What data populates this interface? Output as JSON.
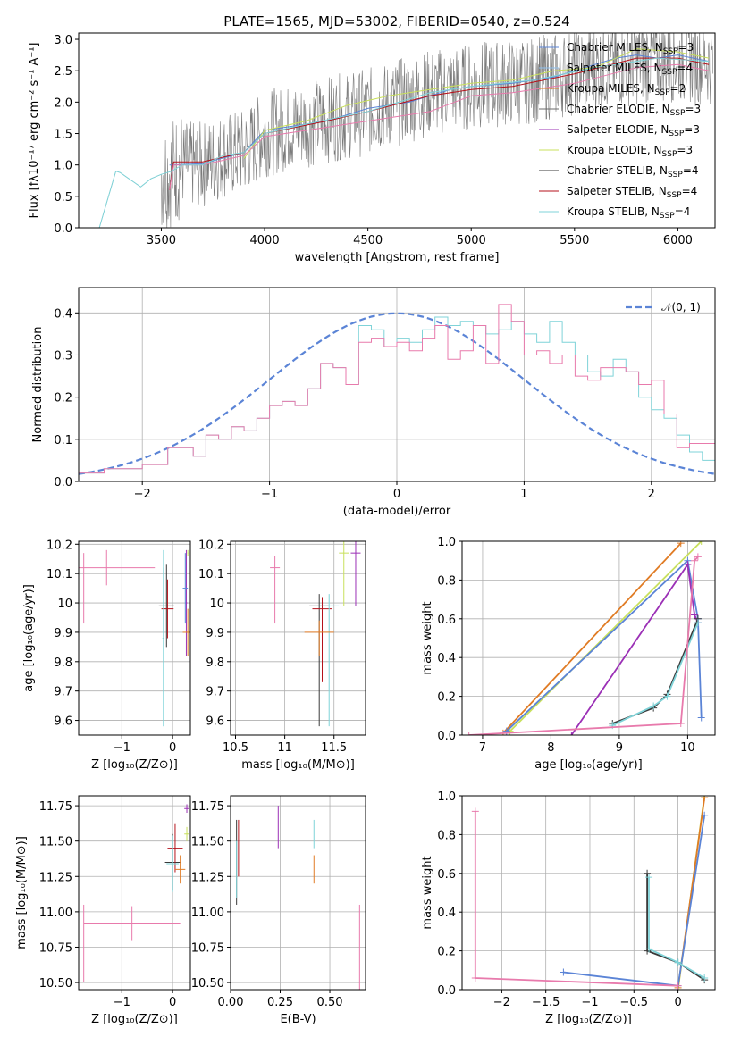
{
  "title": "PLATE=1565, MJD=53002, FIBERID=0540, z=0.524",
  "colors": {
    "Chabrier MILES": "#5b84d6",
    "Salpeter MILES": "#8ec1f0",
    "Kroupa MILES": "#e07b24",
    "Chabrier ELODIE": "#6b6b6b",
    "Salpeter ELODIE": "#9b30b6",
    "Kroupa ELODIE": "#c8e05c",
    "Chabrier STELIB": "#3a3a3a",
    "Salpeter STELIB": "#b5121b",
    "Kroupa STELIB": "#7fd3d8",
    "pink": "#e87aac",
    "data": "#7a7a7a",
    "normal": "#5b84d6"
  },
  "legend_spectrum": [
    {
      "name": "Chabrier MILES",
      "n": "3"
    },
    {
      "name": "Salpeter MILES",
      "n": "4"
    },
    {
      "name": "Kroupa MILES",
      "n": "2"
    },
    {
      "name": "Chabrier ELODIE",
      "n": "3"
    },
    {
      "name": "Salpeter ELODIE",
      "n": "3"
    },
    {
      "name": "Kroupa ELODIE",
      "n": "3"
    },
    {
      "name": "Chabrier STELIB",
      "n": "4"
    },
    {
      "name": "Salpeter STELIB",
      "n": "4"
    },
    {
      "name": "Kroupa STELIB",
      "n": "4"
    }
  ],
  "legend_hist": "𝒩(0, 1)",
  "chart_data": [
    {
      "type": "line",
      "id": "spectrum",
      "title": "PLATE=1565, MJD=53002, FIBERID=0540, z=0.524",
      "xlabel": "wavelength [Angstrom, rest frame]",
      "ylabel": "Flux [fλ10⁻¹⁷ erg cm⁻² s⁻¹ A⁻¹]",
      "xlim": [
        3100,
        6180
      ],
      "ylim": [
        0,
        3.1
      ],
      "xticks": [
        3500,
        4000,
        4500,
        5000,
        5500,
        6000
      ],
      "yticks": [
        0.0,
        0.5,
        1.0,
        1.5,
        2.0,
        2.5,
        3.0
      ],
      "series": [
        {
          "name": "Chabrier MILES",
          "x": [
            3540,
            3700,
            3900,
            4000,
            4100,
            4300,
            4500,
            4700,
            4900,
            5000,
            5200,
            5400,
            5500,
            5700,
            5800,
            5900,
            6000,
            6150
          ],
          "y": [
            1.0,
            1.02,
            1.2,
            1.55,
            1.6,
            1.7,
            1.9,
            2.0,
            2.2,
            2.25,
            2.3,
            2.4,
            2.5,
            2.7,
            2.75,
            2.7,
            2.75,
            2.65
          ]
        },
        {
          "name": "Kroupa ELODIE",
          "x": [
            3900,
            4000,
            4200,
            4400,
            4600,
            4800,
            5000,
            5200,
            5400,
            5600,
            5800,
            6000,
            6150
          ],
          "y": [
            1.1,
            1.55,
            1.7,
            1.95,
            2.1,
            2.2,
            2.3,
            2.35,
            2.5,
            2.55,
            2.85,
            2.8,
            2.7
          ]
        },
        {
          "name": "Salpeter STELIB",
          "x": [
            3540,
            3560,
            3700,
            3900,
            4000,
            4300,
            4500,
            4800,
            5000,
            5200,
            5500,
            5800,
            6000,
            6150
          ],
          "y": [
            0.6,
            1.05,
            1.05,
            1.2,
            1.5,
            1.7,
            1.85,
            2.1,
            2.2,
            2.25,
            2.45,
            2.7,
            2.7,
            2.6
          ]
        },
        {
          "name": "pink",
          "x": [
            3540,
            3560,
            3700,
            3900,
            4000,
            4300,
            4500,
            4800,
            5000,
            5200,
            5500,
            5800,
            6000,
            6150
          ],
          "y": [
            0.6,
            1.0,
            1.0,
            1.15,
            1.45,
            1.6,
            1.7,
            1.85,
            2.1,
            2.15,
            2.3,
            2.55,
            2.6,
            2.5
          ]
        },
        {
          "name": "Kroupa STELIB",
          "x": [
            3200,
            3280,
            3300,
            3400,
            3450,
            3500,
            3550,
            3600,
            3700,
            3800,
            3900,
            4000,
            4200,
            4500,
            4800,
            5000,
            5300,
            5600,
            5900,
            6150
          ],
          "y": [
            0.0,
            0.9,
            0.88,
            0.65,
            0.78,
            0.85,
            0.9,
            1.0,
            1.0,
            1.15,
            1.2,
            1.5,
            1.65,
            1.85,
            2.15,
            2.25,
            2.35,
            2.55,
            2.7,
            2.65
          ]
        }
      ]
    },
    {
      "type": "line",
      "id": "residuals",
      "xlabel": "(data-model)/error",
      "ylabel": "Normed distribution",
      "xlim": [
        -2.5,
        2.5
      ],
      "ylim": [
        0,
        0.46
      ],
      "xticks": [
        -2,
        -1,
        0,
        1,
        2
      ],
      "yticks": [
        0.0,
        0.1,
        0.2,
        0.3,
        0.4
      ],
      "series": [
        {
          "name": "𝒩(0, 1)",
          "style": "dashed",
          "mu": 0,
          "sigma": 1
        },
        {
          "name": "Kroupa STELIB",
          "step": true,
          "x0": -2.5,
          "dx": 0.1,
          "y": [
            0.02,
            0.02,
            0.03,
            0.03,
            0.03,
            0.04,
            0.04,
            0.08,
            0.08,
            0.06,
            0.11,
            0.1,
            0.13,
            0.12,
            0.15,
            0.18,
            0.19,
            0.18,
            0.22,
            0.28,
            0.27,
            0.23,
            0.37,
            0.36,
            0.32,
            0.34,
            0.33,
            0.36,
            0.39,
            0.37,
            0.38,
            0.37,
            0.35,
            0.36,
            0.38,
            0.35,
            0.33,
            0.38,
            0.33,
            0.3,
            0.26,
            0.25,
            0.29,
            0.26,
            0.2,
            0.17,
            0.15,
            0.11,
            0.07,
            0.05,
            0.03
          ]
        },
        {
          "name": "pink",
          "step": true,
          "x0": -2.5,
          "dx": 0.1,
          "y": [
            0.02,
            0.02,
            0.03,
            0.03,
            0.03,
            0.04,
            0.04,
            0.08,
            0.08,
            0.06,
            0.11,
            0.1,
            0.13,
            0.12,
            0.15,
            0.18,
            0.19,
            0.18,
            0.22,
            0.28,
            0.27,
            0.23,
            0.33,
            0.34,
            0.32,
            0.33,
            0.31,
            0.34,
            0.37,
            0.29,
            0.31,
            0.37,
            0.28,
            0.42,
            0.38,
            0.3,
            0.31,
            0.28,
            0.3,
            0.25,
            0.24,
            0.27,
            0.27,
            0.26,
            0.23,
            0.24,
            0.16,
            0.08,
            0.09,
            0.09,
            0.03
          ]
        }
      ]
    },
    {
      "type": "scatter",
      "id": "age_vs_Z",
      "xlabel": "Z [log₁₀(Z/Z⊙)]",
      "ylabel": "age  [log₁₀(age/yr)]",
      "xlim": [
        -1.85,
        0.35
      ],
      "ylim": [
        9.55,
        10.21
      ],
      "xticks": [
        -1,
        0
      ],
      "yticks": [
        9.6,
        9.7,
        9.8,
        9.9,
        10.0,
        10.1,
        10.2
      ]
    },
    {
      "type": "scatter",
      "id": "age_vs_mass",
      "xlabel": "mass [log₁₀(M/M⊙)]",
      "xlim": [
        10.45,
        11.82
      ],
      "ylim": [
        9.55,
        10.21
      ],
      "xticks": [
        10.5,
        11.0,
        11.5
      ],
      "yticks": [
        9.6,
        9.7,
        9.8,
        9.9,
        10.0,
        10.1,
        10.2
      ]
    },
    {
      "type": "line",
      "id": "weight_vs_age",
      "xlabel": "age  [log₁₀(age/yr)]",
      "ylabel": "mass weight",
      "xlim": [
        6.7,
        10.4
      ],
      "ylim": [
        0,
        1.0
      ],
      "xticks": [
        7,
        8,
        9,
        10
      ],
      "yticks": [
        0.0,
        0.2,
        0.4,
        0.6,
        0.8,
        1.0
      ],
      "series": [
        {
          "name": "Kroupa MILES",
          "x": [
            7.3,
            9.9
          ],
          "y": [
            0.01,
            0.99
          ]
        },
        {
          "name": "Kroupa ELODIE",
          "x": [
            7.4,
            10.2
          ],
          "y": [
            0.02,
            1.0
          ]
        },
        {
          "name": "Chabrier MILES",
          "x": [
            7.35,
            10.0,
            10.15,
            10.2
          ],
          "y": [
            0.02,
            0.9,
            0.6,
            0.09
          ]
        },
        {
          "name": "Salpeter ELODIE",
          "x": [
            8.3,
            10.0,
            10.1,
            10.15
          ],
          "y": [
            0.0,
            0.88,
            0.62,
            0.58
          ]
        },
        {
          "name": "Chabrier STELIB",
          "x": [
            8.9,
            9.5,
            9.7,
            10.15
          ],
          "y": [
            0.06,
            0.14,
            0.21,
            0.6
          ]
        },
        {
          "name": "Kroupa STELIB",
          "x": [
            8.9,
            9.5,
            9.7,
            10.15
          ],
          "y": [
            0.05,
            0.15,
            0.2,
            0.58
          ]
        },
        {
          "name": "pink",
          "x": [
            6.8,
            9.9,
            10.1,
            10.15
          ],
          "y": [
            0.0,
            0.06,
            0.9,
            0.92
          ]
        }
      ]
    },
    {
      "type": "scatter",
      "id": "mass_vs_Z",
      "xlabel": "Z [log₁₀(Z/Z⊙)]",
      "ylabel": "mass [log₁₀(M/M⊙)]",
      "xlim": [
        -1.85,
        0.35
      ],
      "ylim": [
        10.45,
        11.82
      ],
      "xticks": [
        -1,
        0
      ],
      "yticks": [
        10.5,
        10.75,
        11.0,
        11.25,
        11.5,
        11.75
      ]
    },
    {
      "type": "scatter",
      "id": "mass_vs_ebv",
      "xlabel": "E(B-V)",
      "xlim": [
        0.0,
        0.68
      ],
      "ylim": [
        10.45,
        11.82
      ],
      "xticks": [
        0.0,
        0.25,
        0.5
      ],
      "yticks": [
        10.5,
        10.75,
        11.0,
        11.25,
        11.5,
        11.75
      ]
    },
    {
      "type": "line",
      "id": "weight_vs_Z",
      "xlabel": "Z [log₁₀(Z/Z⊙)]",
      "ylabel": "mass weight",
      "xlim": [
        -2.45,
        0.42
      ],
      "ylim": [
        0,
        1.0
      ],
      "xticks": [
        -2.0,
        -1.5,
        -1.0,
        -0.5,
        0.0
      ],
      "yticks": [
        0.0,
        0.2,
        0.4,
        0.6,
        0.8,
        1.0
      ],
      "series": [
        {
          "name": "Kroupa ELODIE",
          "x": [
            0.0,
            0.3
          ],
          "y": [
            0.0,
            1.0
          ]
        },
        {
          "name": "Kroupa MILES",
          "x": [
            0.0,
            0.3
          ],
          "y": [
            0.01,
            0.99
          ]
        },
        {
          "name": "Chabrier MILES",
          "x": [
            -1.3,
            0.0,
            0.3
          ],
          "y": [
            0.09,
            0.02,
            0.9
          ]
        },
        {
          "name": "Chabrier STELIB",
          "x": [
            -0.35,
            -0.35,
            0.0,
            0.3
          ],
          "y": [
            0.6,
            0.2,
            0.14,
            0.05
          ]
        },
        {
          "name": "Kroupa STELIB",
          "x": [
            -0.33,
            -0.33,
            0.0,
            0.3
          ],
          "y": [
            0.58,
            0.21,
            0.14,
            0.06
          ]
        },
        {
          "name": "pink",
          "x": [
            -2.3,
            -2.3,
            0.0
          ],
          "y": [
            0.92,
            0.06,
            0.02
          ]
        }
      ]
    }
  ]
}
